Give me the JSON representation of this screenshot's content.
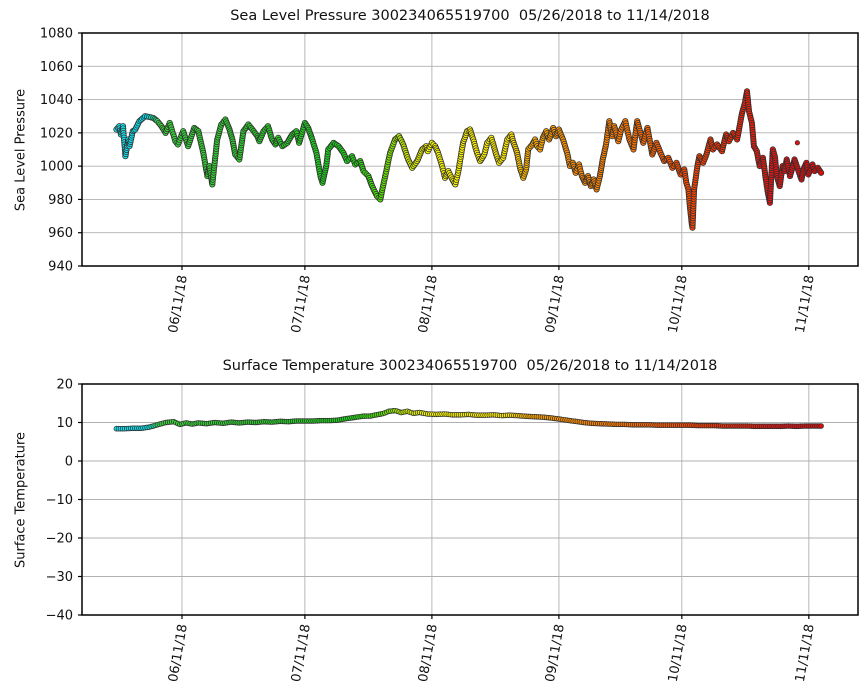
{
  "figure": {
    "background": "#ffffff",
    "grid_color": "#b0b0b0",
    "spine_color": "#000000",
    "text_color": "#111111",
    "marker_edge_color": "#2e2e2e"
  },
  "colormap": {
    "description": "rainbow time colormap cyan->green->yellow->orange->red",
    "stops": [
      [
        0.0,
        "#1BE2EF"
      ],
      [
        0.045,
        "#00DCE8"
      ],
      [
        0.062,
        "#3BD53B"
      ],
      [
        0.2,
        "#2CCB2C"
      ],
      [
        0.33,
        "#19D519"
      ],
      [
        0.375,
        "#4FDE06"
      ],
      [
        0.41,
        "#C8EA00"
      ],
      [
        0.44,
        "#F6F600"
      ],
      [
        0.555,
        "#FFEC00"
      ],
      [
        0.585,
        "#FFAE00"
      ],
      [
        0.63,
        "#FF9300"
      ],
      [
        0.72,
        "#FF7A00"
      ],
      [
        0.8,
        "#FF4E00"
      ],
      [
        0.87,
        "#F12A05"
      ],
      [
        0.93,
        "#E51414"
      ],
      [
        1.0,
        "#DB0D0D"
      ]
    ]
  },
  "x_axis": {
    "start_date": "05/26/2018",
    "end_date": "11/14/2018",
    "days_total": 172,
    "range_days": [
      -8.4,
      181
    ],
    "ticks": [
      {
        "day": 16,
        "label": "06/11/18"
      },
      {
        "day": 46,
        "label": "07/11/18"
      },
      {
        "day": 77,
        "label": "08/11/18"
      },
      {
        "day": 108,
        "label": "09/11/18"
      },
      {
        "day": 138,
        "label": "10/11/18"
      },
      {
        "day": 169,
        "label": "11/11/18"
      }
    ]
  },
  "chart_data": [
    {
      "type": "scatter",
      "title": "Sea Level Pressure 300234065519700  05/26/2018 to 11/14/2018",
      "ylabel": "Sea Level Pressure",
      "ylim": [
        940,
        1080
      ],
      "yticks": [
        {
          "value": 1080,
          "label": "1080"
        },
        {
          "value": 1060,
          "label": "1060"
        },
        {
          "value": 1040,
          "label": "1040"
        },
        {
          "value": 1020,
          "label": "1020"
        },
        {
          "value": 1000,
          "label": "1000"
        },
        {
          "value": 980,
          "label": "980"
        },
        {
          "value": 960,
          "label": "960"
        },
        {
          "value": 940,
          "label": "940"
        }
      ],
      "grid": true,
      "legend": "none",
      "points": [
        [
          0,
          1022
        ],
        [
          0.7,
          1024
        ],
        [
          1.1,
          1019
        ],
        [
          1.6,
          1024
        ],
        [
          2.2,
          1006
        ],
        [
          2.9,
          1016
        ],
        [
          3.2,
          1012
        ],
        [
          4,
          1021
        ],
        [
          4.6,
          1022
        ],
        [
          5.6,
          1027
        ],
        [
          7,
          1030
        ],
        [
          9,
          1029
        ],
        [
          10,
          1027
        ],
        [
          11,
          1024
        ],
        [
          12,
          1020
        ],
        [
          13,
          1026
        ],
        [
          14.4,
          1015
        ],
        [
          15,
          1013
        ],
        [
          16.3,
          1021
        ],
        [
          17.5,
          1012
        ],
        [
          19,
          1023
        ],
        [
          20,
          1021
        ],
        [
          21.2,
          1008
        ],
        [
          22.2,
          994
        ],
        [
          22.7,
          1000
        ],
        [
          23.4,
          989
        ],
        [
          24.6,
          1016
        ],
        [
          25.6,
          1025
        ],
        [
          26.6,
          1028
        ],
        [
          27.6,
          1022
        ],
        [
          28.3,
          1016
        ],
        [
          29,
          1007
        ],
        [
          30,
          1004
        ],
        [
          31,
          1021
        ],
        [
          32.2,
          1025
        ],
        [
          33.2,
          1022
        ],
        [
          34.4,
          1018
        ],
        [
          34.9,
          1015
        ],
        [
          35.9,
          1021
        ],
        [
          37,
          1024
        ],
        [
          38,
          1016
        ],
        [
          38.8,
          1013
        ],
        [
          39.5,
          1017
        ],
        [
          40.5,
          1012
        ],
        [
          41.7,
          1014
        ],
        [
          42.9,
          1019
        ],
        [
          43.9,
          1021
        ],
        [
          44.6,
          1014
        ],
        [
          46,
          1026
        ],
        [
          46.8,
          1023
        ],
        [
          47.8,
          1016
        ],
        [
          48.8,
          1008
        ],
        [
          49.8,
          994
        ],
        [
          50.3,
          990
        ],
        [
          51.2,
          1000
        ],
        [
          51.7,
          1010
        ],
        [
          53,
          1014
        ],
        [
          54.2,
          1012
        ],
        [
          55.4,
          1008
        ],
        [
          56.3,
          1003
        ],
        [
          57.5,
          1006
        ],
        [
          58.3,
          1001
        ],
        [
          59.5,
          1003
        ],
        [
          60.3,
          997
        ],
        [
          61.5,
          994
        ],
        [
          62.4,
          988
        ],
        [
          63.6,
          982
        ],
        [
          64.4,
          980
        ],
        [
          65.6,
          994
        ],
        [
          66.8,
          1008
        ],
        [
          68,
          1016
        ],
        [
          69,
          1018
        ],
        [
          70,
          1013
        ],
        [
          71.2,
          1004
        ],
        [
          72.2,
          999
        ],
        [
          73.4,
          1003
        ],
        [
          74.6,
          1010
        ],
        [
          75.6,
          1012
        ],
        [
          76,
          1009
        ],
        [
          77,
          1014
        ],
        [
          77.8,
          1012
        ],
        [
          78.5,
          1008
        ],
        [
          79.5,
          1000
        ],
        [
          80.2,
          993
        ],
        [
          81,
          997
        ],
        [
          82,
          992
        ],
        [
          82.7,
          989
        ],
        [
          83.4,
          996
        ],
        [
          84.6,
          1014
        ],
        [
          85.6,
          1021
        ],
        [
          86.3,
          1022
        ],
        [
          87.1,
          1016
        ],
        [
          88,
          1008
        ],
        [
          88.8,
          1003
        ],
        [
          89.8,
          1007
        ],
        [
          90.5,
          1014
        ],
        [
          91.5,
          1017
        ],
        [
          92,
          1013
        ],
        [
          92.7,
          1007
        ],
        [
          93.4,
          1002
        ],
        [
          94.4,
          1005
        ],
        [
          95.4,
          1016
        ],
        [
          96.4,
          1019
        ],
        [
          96.8,
          1015
        ],
        [
          97.8,
          1008
        ],
        [
          98.5,
          999
        ],
        [
          99.3,
          993
        ],
        [
          100,
          998
        ],
        [
          100.5,
          1010
        ],
        [
          101.5,
          1013
        ],
        [
          102.2,
          1016
        ],
        [
          102.7,
          1012
        ],
        [
          103.4,
          1010
        ],
        [
          104.1,
          1017
        ],
        [
          104.9,
          1021
        ],
        [
          105.6,
          1016
        ],
        [
          106.6,
          1023
        ],
        [
          107.3,
          1018
        ],
        [
          108,
          1022
        ],
        [
          109,
          1016
        ],
        [
          110,
          1008
        ],
        [
          110.7,
          1000
        ],
        [
          111.4,
          1002
        ],
        [
          112.1,
          996
        ],
        [
          112.9,
          1001
        ],
        [
          113.6,
          994
        ],
        [
          114.4,
          990
        ],
        [
          115.1,
          994
        ],
        [
          115.8,
          988
        ],
        [
          116.5,
          992
        ],
        [
          117.2,
          986
        ],
        [
          118,
          994
        ],
        [
          118.7,
          1004
        ],
        [
          119.5,
          1013
        ],
        [
          120.3,
          1027
        ],
        [
          121,
          1018
        ],
        [
          121.5,
          1024
        ],
        [
          122.5,
          1015
        ],
        [
          123.2,
          1022
        ],
        [
          124.2,
          1027
        ],
        [
          125.2,
          1016
        ],
        [
          126.2,
          1010
        ],
        [
          127.1,
          1027
        ],
        [
          127.9,
          1020
        ],
        [
          128.6,
          1014
        ],
        [
          129.6,
          1023
        ],
        [
          130.8,
          1007
        ],
        [
          131.8,
          1014
        ],
        [
          132.8,
          1008
        ],
        [
          133.7,
          1003
        ],
        [
          134.7,
          1005
        ],
        [
          135.7,
          999
        ],
        [
          136.7,
          1002
        ],
        [
          137.7,
          995
        ],
        [
          138.6,
          998
        ],
        [
          139.1,
          990
        ],
        [
          139.6,
          986
        ],
        [
          140,
          975
        ],
        [
          140.4,
          966
        ],
        [
          140.6,
          963
        ],
        [
          141,
          986
        ],
        [
          141.8,
          1000
        ],
        [
          142.3,
          1006
        ],
        [
          143.2,
          1002
        ],
        [
          144,
          1007
        ],
        [
          145,
          1016
        ],
        [
          145.6,
          1010
        ],
        [
          146.6,
          1013
        ],
        [
          147.8,
          1009
        ],
        [
          148.8,
          1019
        ],
        [
          149.5,
          1015
        ],
        [
          150.5,
          1020
        ],
        [
          151.5,
          1016
        ],
        [
          152.7,
          1032
        ],
        [
          153.4,
          1038
        ],
        [
          153.9,
          1045
        ],
        [
          154.4,
          1033
        ],
        [
          155.1,
          1026
        ],
        [
          155.6,
          1012
        ],
        [
          156.3,
          1009
        ],
        [
          157,
          1000
        ],
        [
          157.8,
          1005
        ],
        [
          158.5,
          992
        ],
        [
          159,
          984
        ],
        [
          159.5,
          978
        ],
        [
          160.2,
          1010
        ],
        [
          160.7,
          1006
        ],
        [
          161.2,
          994
        ],
        [
          161.9,
          988
        ],
        [
          162.6,
          1000
        ],
        [
          163.1,
          997
        ],
        [
          163.6,
          1004
        ],
        [
          164.4,
          994
        ],
        [
          165,
          999
        ],
        [
          165.5,
          1004
        ],
        [
          166.5,
          997
        ],
        [
          167.2,
          992
        ],
        [
          167.7,
          998
        ],
        [
          168.4,
          1002
        ],
        [
          168.9,
          995
        ],
        [
          169.9,
          1001
        ],
        [
          170.4,
          997
        ],
        [
          171.2,
          999
        ],
        [
          172,
          996
        ]
      ],
      "extra_points": [
        [
          166.2,
          1014
        ]
      ]
    },
    {
      "type": "scatter",
      "title": "Surface Temperature 300234065519700  05/26/2018 to 11/14/2018",
      "ylabel": "Surface Temperature",
      "ylim": [
        -40,
        20
      ],
      "yticks": [
        {
          "value": 20,
          "label": "20"
        },
        {
          "value": 10,
          "label": "10"
        },
        {
          "value": 0,
          "label": "0"
        },
        {
          "value": -10,
          "label": "−10"
        },
        {
          "value": -20,
          "label": "−20"
        },
        {
          "value": -30,
          "label": "−30"
        },
        {
          "value": -40,
          "label": "−40"
        }
      ],
      "grid": true,
      "legend": "none",
      "points": [
        [
          0,
          8.4
        ],
        [
          2,
          8.4
        ],
        [
          4,
          8.5
        ],
        [
          6,
          8.5
        ],
        [
          8,
          8.8
        ],
        [
          10,
          9.4
        ],
        [
          12,
          10.0
        ],
        [
          14,
          10.2
        ],
        [
          15.5,
          9.5
        ],
        [
          17,
          9.9
        ],
        [
          18.5,
          9.6
        ],
        [
          20,
          9.9
        ],
        [
          22,
          9.7
        ],
        [
          24,
          10.0
        ],
        [
          26,
          9.8
        ],
        [
          28,
          10.1
        ],
        [
          30,
          9.9
        ],
        [
          32,
          10.1
        ],
        [
          34,
          10.0
        ],
        [
          36,
          10.2
        ],
        [
          38,
          10.1
        ],
        [
          40,
          10.3
        ],
        [
          42,
          10.2
        ],
        [
          44,
          10.4
        ],
        [
          46,
          10.4
        ],
        [
          48,
          10.4
        ],
        [
          50,
          10.5
        ],
        [
          52,
          10.5
        ],
        [
          54,
          10.6
        ],
        [
          56,
          11.0
        ],
        [
          58,
          11.3
        ],
        [
          60,
          11.6
        ],
        [
          62,
          11.7
        ],
        [
          63,
          11.9
        ],
        [
          65,
          12.3
        ],
        [
          66.5,
          12.9
        ],
        [
          68,
          13.1
        ],
        [
          69.5,
          12.6
        ],
        [
          71,
          12.9
        ],
        [
          72.5,
          12.4
        ],
        [
          74,
          12.6
        ],
        [
          76,
          12.2
        ],
        [
          78,
          12.1
        ],
        [
          80,
          12.2
        ],
        [
          82,
          12.0
        ],
        [
          84,
          12.0
        ],
        [
          86,
          12.1
        ],
        [
          88,
          11.9
        ],
        [
          90,
          11.9
        ],
        [
          92,
          12.0
        ],
        [
          94,
          11.8
        ],
        [
          96,
          11.9
        ],
        [
          98,
          11.8
        ],
        [
          100,
          11.6
        ],
        [
          102,
          11.5
        ],
        [
          104,
          11.4
        ],
        [
          106,
          11.2
        ],
        [
          108,
          10.9
        ],
        [
          110,
          10.6
        ],
        [
          112,
          10.3
        ],
        [
          114,
          10.0
        ],
        [
          116,
          9.8
        ],
        [
          118,
          9.7
        ],
        [
          120,
          9.6
        ],
        [
          122,
          9.5
        ],
        [
          124,
          9.5
        ],
        [
          126,
          9.4
        ],
        [
          128,
          9.4
        ],
        [
          130,
          9.4
        ],
        [
          132,
          9.3
        ],
        [
          134,
          9.3
        ],
        [
          136,
          9.3
        ],
        [
          138,
          9.3
        ],
        [
          140,
          9.3
        ],
        [
          142,
          9.2
        ],
        [
          144,
          9.2
        ],
        [
          146,
          9.2
        ],
        [
          148,
          9.1
        ],
        [
          150,
          9.1
        ],
        [
          152,
          9.1
        ],
        [
          154,
          9.1
        ],
        [
          156,
          9.0
        ],
        [
          158,
          9.0
        ],
        [
          160,
          9.0
        ],
        [
          162,
          9.0
        ],
        [
          164,
          9.1
        ],
        [
          166,
          9.0
        ],
        [
          168,
          9.1
        ],
        [
          170,
          9.1
        ],
        [
          172,
          9.1
        ]
      ],
      "extra_points": []
    }
  ]
}
